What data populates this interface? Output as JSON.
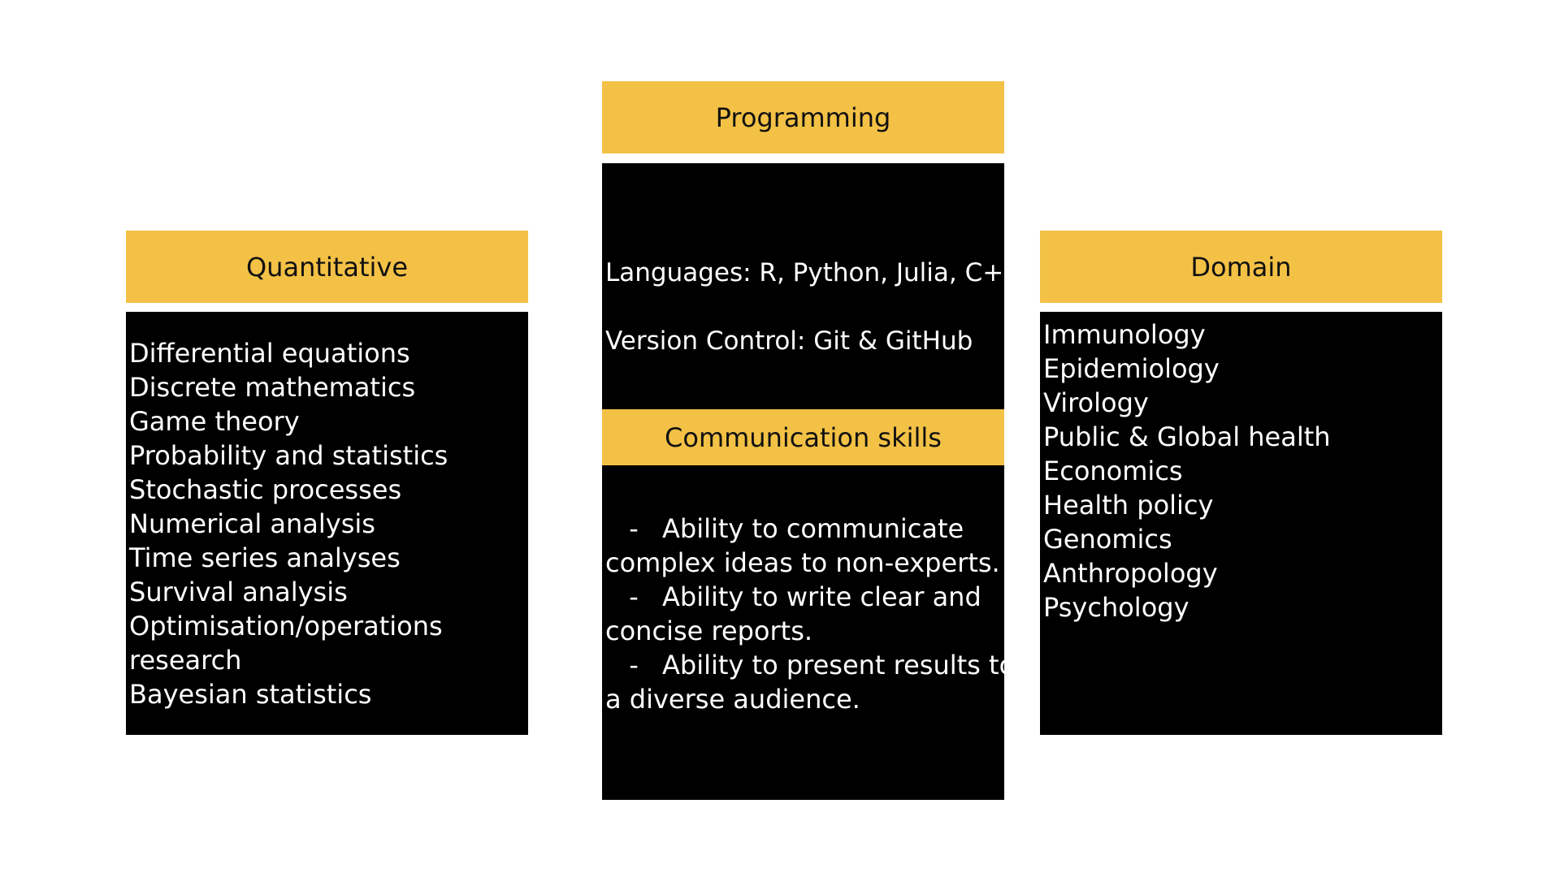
{
  "quantitative": {
    "title": "Quantitative",
    "items": [
      "Differential equations",
      "Discrete mathematics",
      "Game theory",
      "Probability and statistics",
      "Stochastic processes",
      "Numerical analysis",
      "Time series analyses",
      "Survival analysis",
      "Optimisation/operations research",
      "Bayesian statistics"
    ]
  },
  "programming": {
    "title": "Programming",
    "languages": "Languages: R, Python, Julia, C++",
    "version_control": "Version Control: Git & GitHub"
  },
  "communication": {
    "title": "Communication skills",
    "bullet_marker": "-",
    "bullets": [
      {
        "first_line": "Ability to communicate",
        "second_line": "complex ideas to non-experts."
      },
      {
        "first_line": "Ability to write clear and",
        "second_line": "concise reports."
      },
      {
        "first_line": "Ability to present results to",
        "second_line": "a diverse audience."
      }
    ]
  },
  "domain": {
    "title": "Domain",
    "items": [
      "Immunology",
      "Epidemiology",
      "Virology",
      "Public & Global health",
      "Economics",
      "Health policy",
      "Genomics",
      "Anthropology",
      "Psychology"
    ]
  },
  "colors": {
    "header_bg": "#f3c145",
    "panel_bg": "#000000",
    "panel_text": "#ffffff"
  }
}
